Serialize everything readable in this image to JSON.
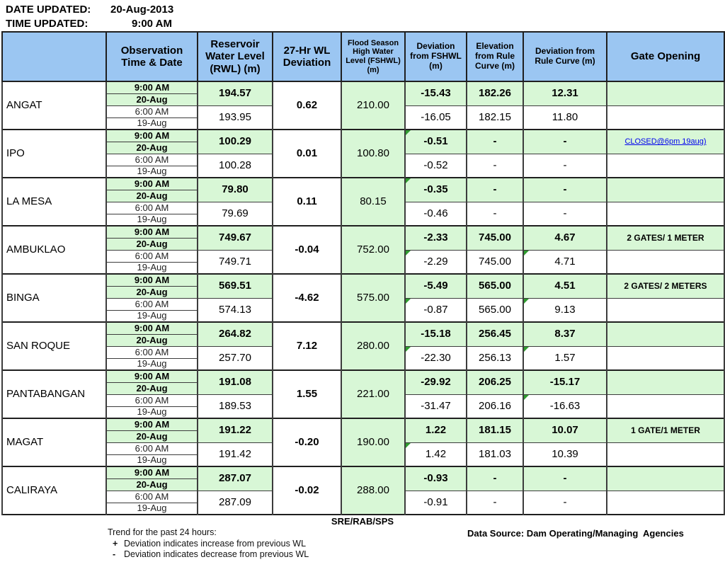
{
  "colors": {
    "header_bg": "#9bc6f2",
    "green_bg": "#d8f7d6",
    "link_blue": "#0000ee",
    "marker_green": "#2f9b2f"
  },
  "updated": {
    "date_label": "DATE UPDATED:",
    "date_value": "20-Aug-2013",
    "time_label": "TIME UPDATED:",
    "time_value": "9:00 AM"
  },
  "table": {
    "headers": [
      {
        "label": ""
      },
      {
        "label": "Observation Time & Date"
      },
      {
        "label": "Reservoir Water Level (RWL) (m)"
      },
      {
        "label": "27-Hr WL Deviation"
      },
      {
        "label": "Flood Season High Water Level (FSHWL) (m)"
      },
      {
        "label": "Deviation from FSHWL (m)"
      },
      {
        "label": "Elevation from Rule Curve (m)"
      },
      {
        "label": "Deviation from Rule Curve (m)"
      },
      {
        "label": "Gate Opening"
      }
    ],
    "obs_times": [
      "9:00 AM",
      "20-Aug",
      "6:00 AM",
      "19-Aug"
    ],
    "dams": [
      {
        "name": "ANGAT",
        "rwl": [
          "194.57",
          "193.95"
        ],
        "wl_deviation_27hr": "0.62",
        "fshwl": "210.00",
        "dev_fshwl": [
          "-15.43",
          "-16.05"
        ],
        "elev_rule_curve": [
          "182.26",
          "182.15"
        ],
        "dev_rule_curve": [
          "12.31",
          "11.80"
        ],
        "gate_opening": [
          "",
          ""
        ],
        "gate_link": false,
        "markers": []
      },
      {
        "name": "IPO",
        "rwl": [
          "100.29",
          "100.28"
        ],
        "wl_deviation_27hr": "0.01",
        "fshwl": "100.80",
        "dev_fshwl": [
          "-0.51",
          "-0.52"
        ],
        "elev_rule_curve": [
          "-",
          "-"
        ],
        "dev_rule_curve": [
          "-",
          "-"
        ],
        "gate_opening": [
          "CLOSED@6pm 19aug)",
          ""
        ],
        "gate_link": true,
        "markers": [
          "dev_fshwl.0"
        ]
      },
      {
        "name": "LA MESA",
        "rwl": [
          "79.80",
          "79.69"
        ],
        "wl_deviation_27hr": "0.11",
        "fshwl": "80.15",
        "dev_fshwl": [
          "-0.35",
          "-0.46"
        ],
        "elev_rule_curve": [
          "-",
          "-"
        ],
        "dev_rule_curve": [
          "-",
          "-"
        ],
        "gate_opening": [
          "",
          ""
        ],
        "gate_link": false,
        "markers": [
          "dev_fshwl.0"
        ]
      },
      {
        "name": "AMBUKLAO",
        "rwl": [
          "749.67",
          "749.71"
        ],
        "wl_deviation_27hr": "-0.04",
        "fshwl": "752.00",
        "dev_fshwl": [
          "-2.33",
          "-2.29"
        ],
        "elev_rule_curve": [
          "745.00",
          "745.00"
        ],
        "dev_rule_curve": [
          "4.67",
          "4.71"
        ],
        "gate_opening": [
          "2 GATES/ 1 METER",
          ""
        ],
        "gate_link": false,
        "markers": [
          "dev_fshwl.1",
          "dev_rule_curve.1"
        ]
      },
      {
        "name": "BINGA",
        "rwl": [
          "569.51",
          "574.13"
        ],
        "wl_deviation_27hr": "-4.62",
        "fshwl": "575.00",
        "dev_fshwl": [
          "-5.49",
          "-0.87"
        ],
        "elev_rule_curve": [
          "565.00",
          "565.00"
        ],
        "dev_rule_curve": [
          "4.51",
          "9.13"
        ],
        "gate_opening": [
          "2 GATES/ 2 METERS",
          ""
        ],
        "gate_link": false,
        "markers": [
          "dev_fshwl.1",
          "dev_rule_curve.1"
        ]
      },
      {
        "name": "SAN ROQUE",
        "rwl": [
          "264.82",
          "257.70"
        ],
        "wl_deviation_27hr": "7.12",
        "fshwl": "280.00",
        "dev_fshwl": [
          "-15.18",
          "-22.30"
        ],
        "elev_rule_curve": [
          "256.45",
          "256.13"
        ],
        "dev_rule_curve": [
          "8.37",
          "1.57"
        ],
        "gate_opening": [
          "",
          ""
        ],
        "gate_link": false,
        "markers": [
          "dev_fshwl.1",
          "dev_rule_curve.1"
        ]
      },
      {
        "name": "PANTABANGAN",
        "rwl": [
          "191.08",
          "189.53"
        ],
        "wl_deviation_27hr": "1.55",
        "fshwl": "221.00",
        "dev_fshwl": [
          "-29.92",
          "-31.47"
        ],
        "elev_rule_curve": [
          "206.25",
          "206.16"
        ],
        "dev_rule_curve": [
          "-15.17",
          "-16.63"
        ],
        "gate_opening": [
          "",
          ""
        ],
        "gate_link": false,
        "markers": [
          "dev_rule_curve.1"
        ]
      },
      {
        "name": "MAGAT",
        "rwl": [
          "191.22",
          "191.42"
        ],
        "wl_deviation_27hr": "-0.20",
        "fshwl": "190.00",
        "dev_fshwl": [
          "1.22",
          "1.42"
        ],
        "elev_rule_curve": [
          "181.15",
          "181.03"
        ],
        "dev_rule_curve": [
          "10.07",
          "10.39"
        ],
        "gate_opening": [
          "1 GATE/1 METER",
          ""
        ],
        "gate_link": false,
        "markers": [
          "dev_fshwl.1"
        ]
      },
      {
        "name": "CALIRAYA",
        "rwl": [
          "287.07",
          "287.09"
        ],
        "wl_deviation_27hr": "-0.02",
        "fshwl": "288.00",
        "dev_fshwl": [
          "-0.93",
          "-0.91"
        ],
        "elev_rule_curve": [
          "-",
          "-"
        ],
        "dev_rule_curve": [
          "-",
          "-"
        ],
        "gate_opening": [
          "",
          ""
        ],
        "gate_link": false,
        "markers": []
      }
    ]
  },
  "footer": {
    "sig": "SRE/RAB/SPS",
    "data_source": "Data Source: Dam Operating/Managing  Agencies",
    "trend_title": "Trend for the past 24 hours:",
    "plus_symbol": "+",
    "plus_text": "Deviation indicates increase from previous WL",
    "minus_symbol": "-",
    "minus_text": "Deviation indicates decrease from previous WL"
  }
}
